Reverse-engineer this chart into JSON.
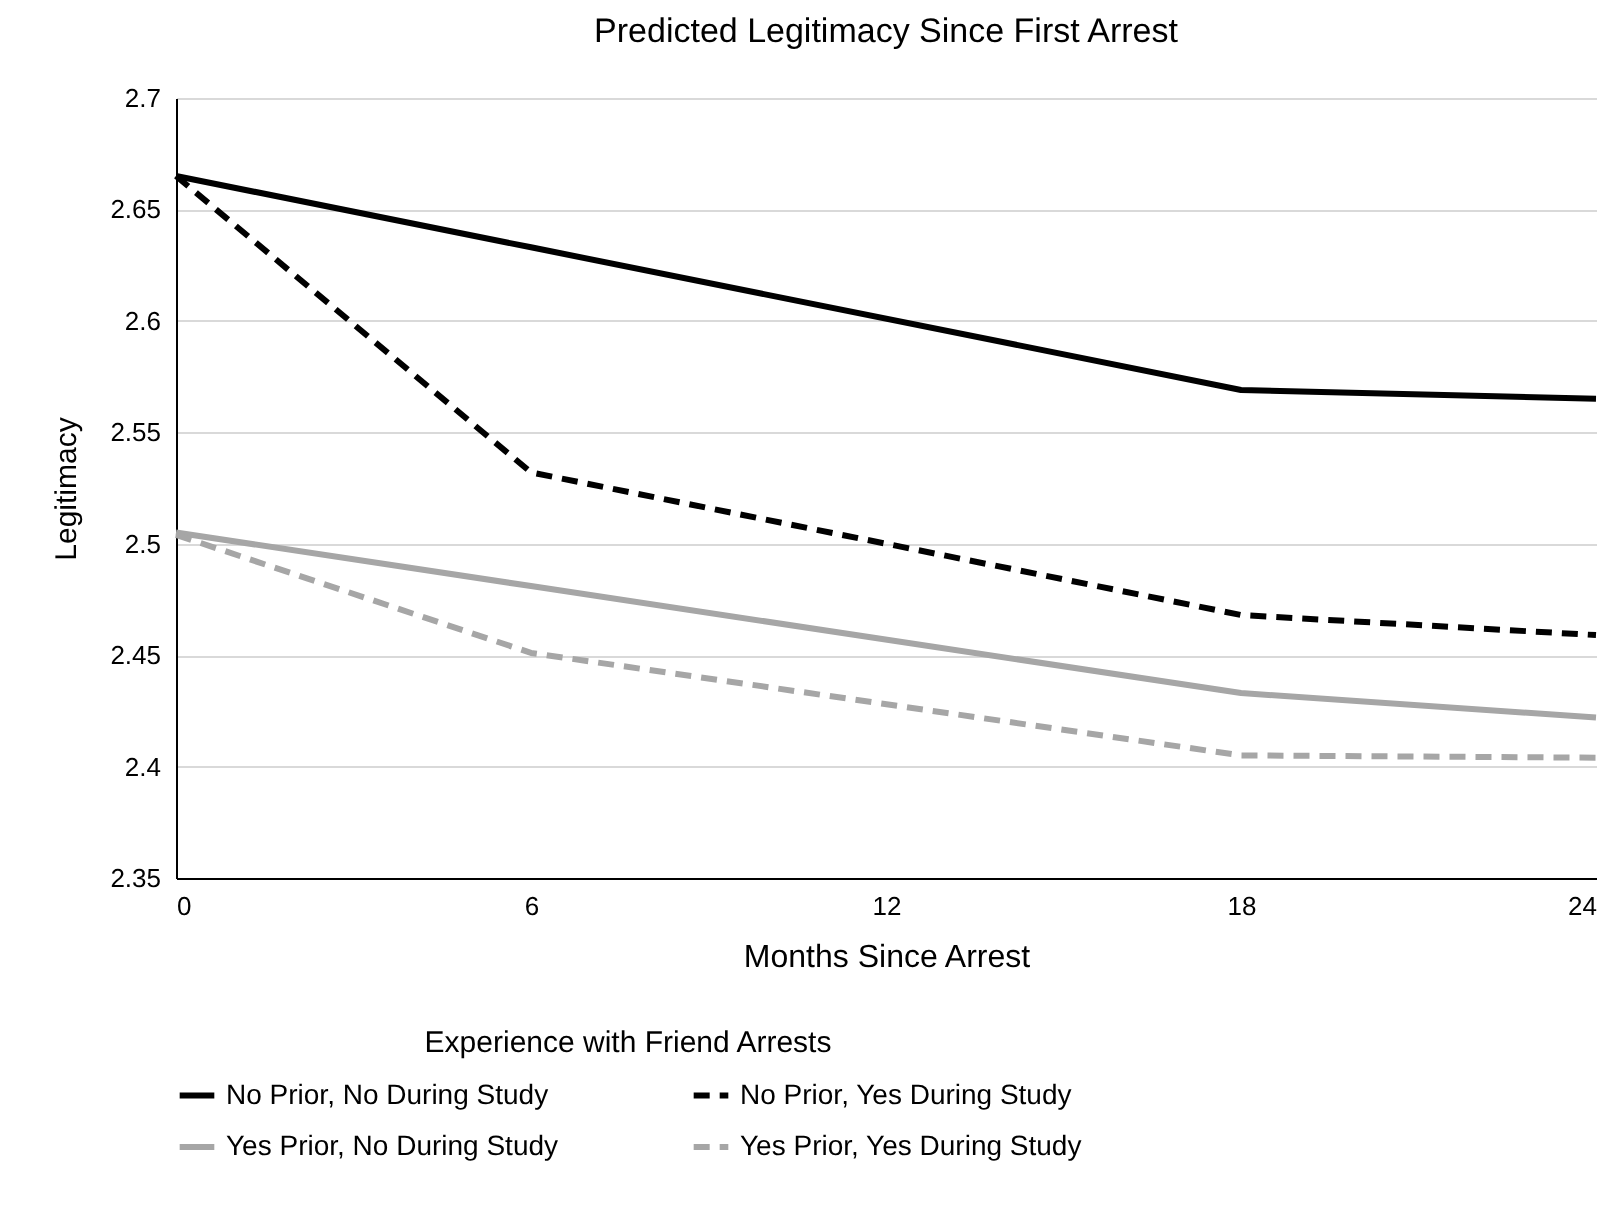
{
  "chart_data": {
    "type": "line",
    "title": "Predicted Legitimacy Since First Arrest",
    "xlabel": "Months  Since Arrest",
    "ylabel": "Legitimacy",
    "legend_title": "Experience with Friend Arrests",
    "x": [
      0,
      6,
      18,
      24
    ],
    "series": [
      {
        "name": "No Prior, No During Study",
        "color": "#000000",
        "line_style": "solid",
        "values": [
          2.665,
          2.633,
          2.569,
          2.565
        ]
      },
      {
        "name": "No Prior, Yes During Study",
        "color": "#000000",
        "line_style": "dashed",
        "values": [
          2.665,
          2.532,
          2.468,
          2.459
        ]
      },
      {
        "name": "Yes Prior, No During Study",
        "color": "#a6a6a6",
        "line_style": "solid",
        "values": [
          2.505,
          2.481,
          2.433,
          2.422
        ]
      },
      {
        "name": "Yes Prior, Yes During Study",
        "color": "#a6a6a6",
        "line_style": "dashed",
        "values": [
          2.504,
          2.451,
          2.405,
          2.404
        ]
      }
    ],
    "xlim": [
      0,
      24
    ],
    "xticks": [
      0,
      6,
      12,
      18,
      24
    ],
    "ylim": [
      2.35,
      2.7
    ],
    "yticks": [
      2.35,
      2.4,
      2.45,
      2.5,
      2.55,
      2.6,
      2.65,
      2.7
    ],
    "grid": "y",
    "legend": "bottom",
    "marker": "none"
  }
}
